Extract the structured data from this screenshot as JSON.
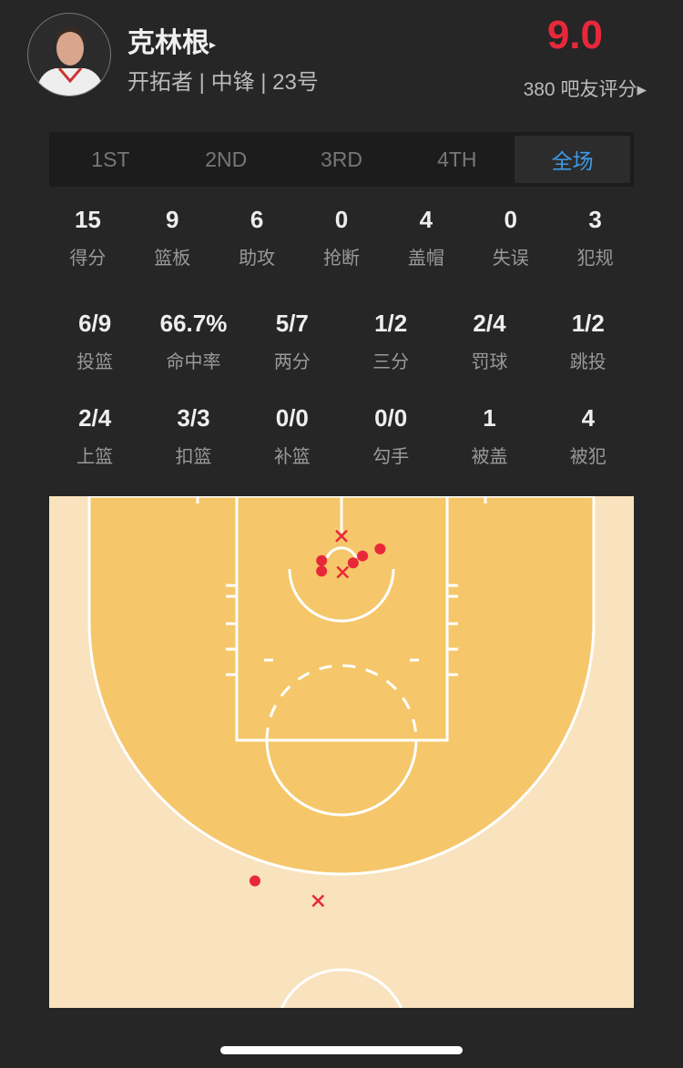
{
  "player": {
    "name": "克林根",
    "name_arrow": "▸",
    "info": "开拓者 | 中锋 | 23号",
    "rating": "9.0",
    "rating_count": "380 吧友评分▸"
  },
  "colors": {
    "rating": "#e8283a",
    "active_tab": "#3d9ae8",
    "court_paint": "#f5c76a",
    "court_outer": "#f9e2be",
    "made": "#e8283a",
    "missed": "#e8283a"
  },
  "tabs": [
    {
      "label": "1ST"
    },
    {
      "label": "2ND"
    },
    {
      "label": "3RD"
    },
    {
      "label": "4TH"
    },
    {
      "label": "全场",
      "active": true
    }
  ],
  "basic_stats": [
    {
      "v": "15",
      "l": "得分"
    },
    {
      "v": "9",
      "l": "篮板"
    },
    {
      "v": "6",
      "l": "助攻"
    },
    {
      "v": "0",
      "l": "抢断"
    },
    {
      "v": "4",
      "l": "盖帽"
    },
    {
      "v": "0",
      "l": "失误"
    },
    {
      "v": "3",
      "l": "犯规"
    }
  ],
  "shooting_stats": [
    {
      "v": "6/9",
      "l": "投篮"
    },
    {
      "v": "66.7%",
      "l": "命中率"
    },
    {
      "v": "5/7",
      "l": "两分"
    },
    {
      "v": "1/2",
      "l": "三分"
    },
    {
      "v": "2/4",
      "l": "罚球"
    },
    {
      "v": "1/2",
      "l": "跳投"
    }
  ],
  "shot_type_stats": [
    {
      "v": "2/4",
      "l": "上篮"
    },
    {
      "v": "3/3",
      "l": "扣篮"
    },
    {
      "v": "0/0",
      "l": "补篮"
    },
    {
      "v": "0/0",
      "l": "勾手"
    },
    {
      "v": "1",
      "l": "被盖"
    },
    {
      "v": "4",
      "l": "被犯"
    }
  ],
  "shots_feet_from_basket": [
    {
      "x": -1.7,
      "y": 0.6,
      "made": true
    },
    {
      "x": -1.7,
      "y": 1.5,
      "made": true
    },
    {
      "x": 1.0,
      "y": 0.8,
      "made": true
    },
    {
      "x": 1.8,
      "y": 0.2,
      "made": true
    },
    {
      "x": 3.3,
      "y": -0.4,
      "made": true
    },
    {
      "x": -7.4,
      "y": 28.0,
      "made": true
    },
    {
      "x": 0,
      "y": -1.5,
      "made": false
    },
    {
      "x": 0.1,
      "y": 1.6,
      "made": false
    },
    {
      "x": -2.0,
      "y": 29.7,
      "made": false
    }
  ]
}
